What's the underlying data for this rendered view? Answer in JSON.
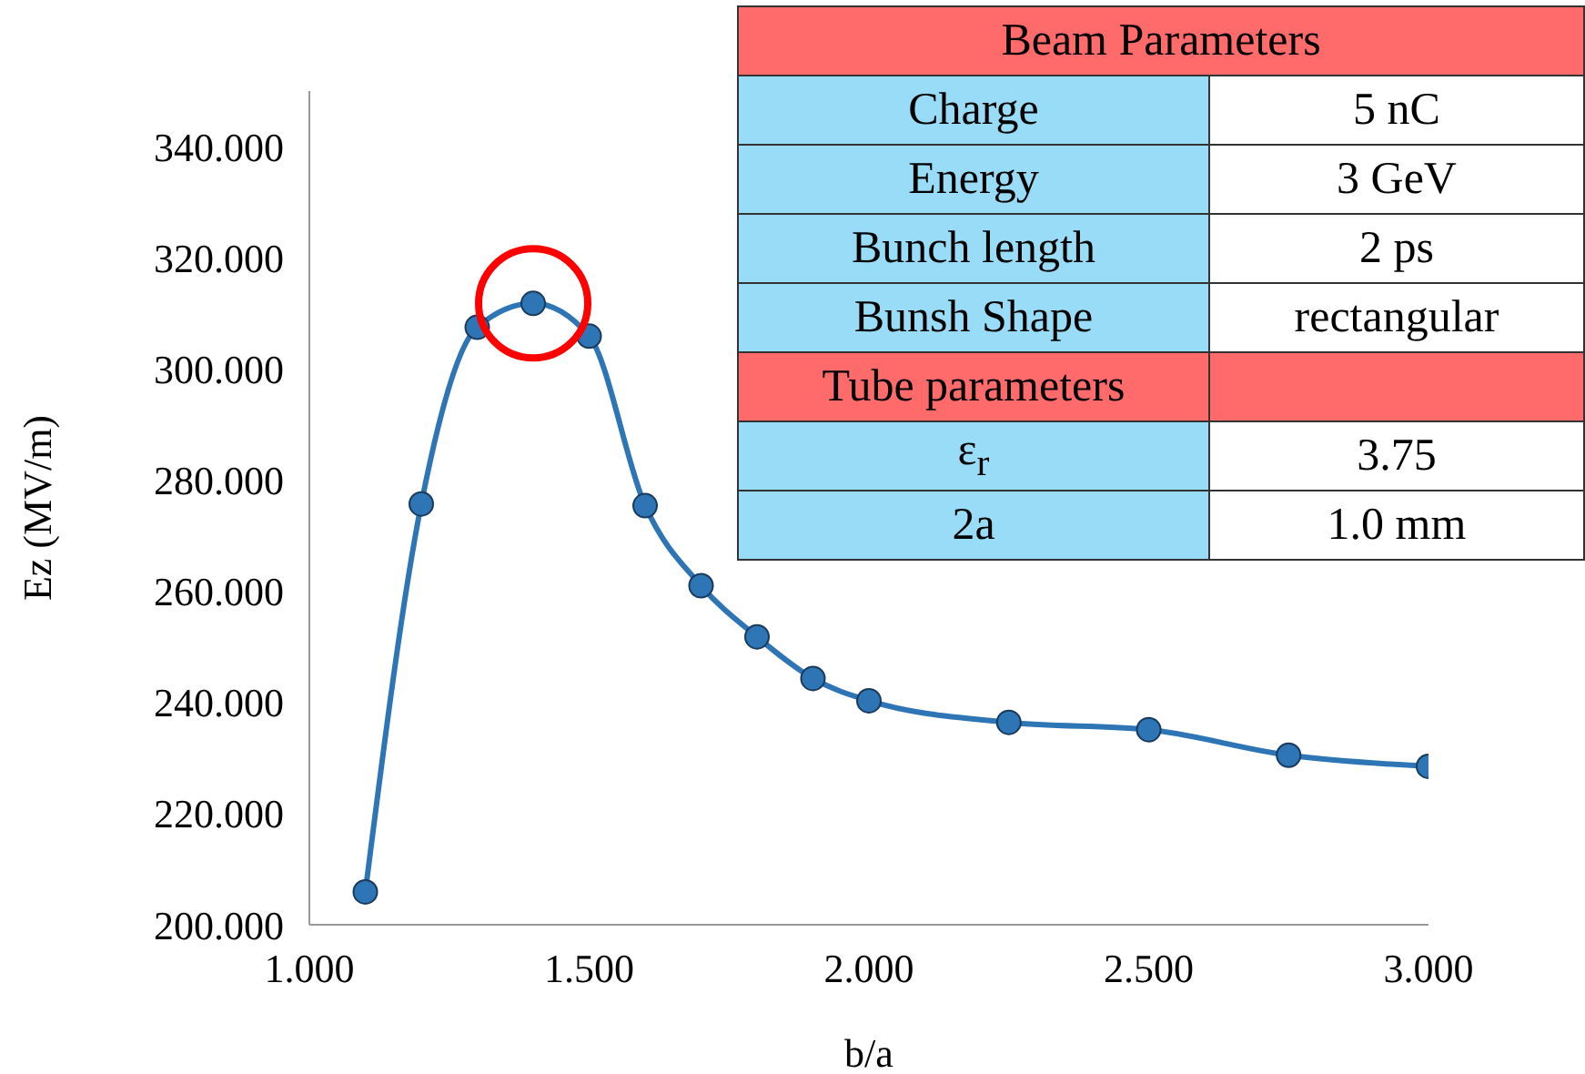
{
  "chart_data": {
    "type": "line",
    "xlabel": "b/a",
    "ylabel": "Ez (MV/m)",
    "x": [
      1.1,
      1.2,
      1.3,
      1.4,
      1.5,
      1.6,
      1.7,
      1.8,
      1.9,
      2.0,
      2.25,
      2.5,
      2.75,
      3.0
    ],
    "series": [
      {
        "color": "#2e75b6",
        "values": [
          205.9,
          275.7,
          307.5,
          311.8,
          305.9,
          275.4,
          261,
          251.8,
          244.3,
          240.3,
          236.4,
          235.1,
          230.5,
          228.5
        ]
      }
    ],
    "xlim": [
      1.0,
      3.0
    ],
    "xticks": [
      {
        "value": 1.0,
        "label": "1.000"
      },
      {
        "value": 1.5,
        "label": "1.500"
      },
      {
        "value": 2.0,
        "label": "2.000"
      },
      {
        "value": 2.5,
        "label": "2.500"
      },
      {
        "value": 3.0,
        "label": "3.000"
      }
    ],
    "ylim": [
      200,
      350
    ],
    "yticks": [
      {
        "value": 200,
        "label": "200.000"
      },
      {
        "value": 220,
        "label": "220.000"
      },
      {
        "value": 240,
        "label": "240.000"
      },
      {
        "value": 260,
        "label": "260.000"
      },
      {
        "value": 280,
        "label": "280.000"
      },
      {
        "value": 300,
        "label": "300.000"
      },
      {
        "value": 320,
        "label": "320.000"
      },
      {
        "value": 340,
        "label": "340.000"
      }
    ],
    "grid": false,
    "marker": "circle",
    "line_style": "solid",
    "annotations": [
      "Beam Parameters",
      "Charge",
      "5 nC",
      "Energy",
      "3 GeV",
      "Bunch length",
      "2 ps",
      "Bunsh Shape",
      "rectangular",
      "Tube parameters",
      "ε$_{r}$",
      "3.75",
      "2a",
      "1.0 mm"
    ]
  }
}
